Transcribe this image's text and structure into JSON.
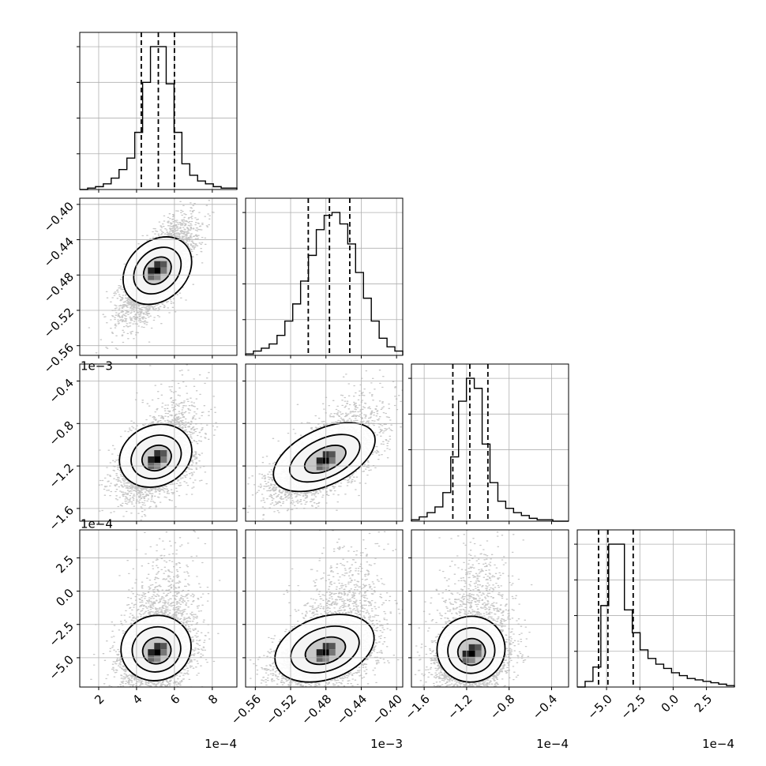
{
  "chart_data": {
    "type": "corner",
    "description_free": true,
    "params": [
      {
        "id": "p0",
        "ticks": [
          2,
          4,
          6,
          8
        ],
        "tick_labels": [
          "2",
          "4",
          "6",
          "8"
        ],
        "range": [
          1.0,
          9.3
        ],
        "offset": "1e−4",
        "quantiles": [
          4.25,
          5.15,
          6.0
        ],
        "hist": {
          "edges_start": 1.0,
          "edges_stop": 9.3,
          "counts": [
            0,
            1,
            2,
            4,
            8,
            14,
            22,
            40,
            75,
            100,
            100,
            74,
            40,
            18,
            10,
            6,
            4,
            2,
            1,
            1
          ]
        }
      },
      {
        "id": "p1",
        "ticks": [
          -0.56,
          -0.52,
          -0.48,
          -0.44,
          -0.4
        ],
        "tick_labels": [
          "−0.56",
          "−0.52",
          "−0.48",
          "−0.44",
          "−0.40"
        ],
        "range": [
          -0.571,
          -0.393
        ],
        "offset": "1e−3",
        "quantiles": [
          -0.5,
          -0.476,
          -0.453
        ],
        "hist": {
          "edges_start": -0.571,
          "edges_stop": -0.393,
          "counts": [
            1,
            3,
            5,
            8,
            14,
            24,
            36,
            52,
            70,
            88,
            98,
            100,
            92,
            78,
            58,
            40,
            24,
            12,
            6,
            3
          ]
        }
      },
      {
        "id": "p2",
        "ticks": [
          -1.6,
          -1.2,
          -0.8,
          -0.4
        ],
        "tick_labels": [
          "−1.6",
          "−1.2",
          "−0.8",
          "−0.4"
        ],
        "range": [
          -1.72,
          -0.24
        ],
        "offset": "1e−4",
        "quantiles": [
          -1.33,
          -1.17,
          -1.0
        ],
        "hist": {
          "edges_start": -1.72,
          "edges_stop": -0.24,
          "counts": [
            1,
            3,
            6,
            10,
            20,
            45,
            84,
            100,
            93,
            54,
            27,
            14,
            9,
            6,
            4,
            2,
            1,
            1,
            0,
            0
          ]
        }
      },
      {
        "id": "p3",
        "ticks": [
          -5.0,
          -2.5,
          0.0,
          2.5
        ],
        "tick_labels": [
          "−5.0",
          "−2.5",
          "0.0",
          "2.5"
        ],
        "range": [
          -7.2,
          4.6
        ],
        "offset": "1e−4",
        "quantiles": [
          -5.6,
          -4.9,
          -3.0
        ],
        "hist": {
          "edges_start": -7.2,
          "edges_stop": 4.6,
          "counts": [
            0,
            4,
            14,
            57,
            100,
            100,
            54,
            38,
            26,
            20,
            16,
            13,
            10,
            8,
            6,
            5,
            4,
            3,
            2,
            1
          ]
        }
      }
    ],
    "pairs": [
      {
        "row": 1,
        "col": 0,
        "center": [
          5.1,
          -0.475
        ],
        "sigma": [
          0.9,
          0.026
        ],
        "rho": 0.7,
        "skew": [
          0,
          0
        ]
      },
      {
        "row": 2,
        "col": 0,
        "center": [
          5.1,
          -1.14
        ],
        "sigma": [
          0.95,
          0.17
        ],
        "rho": 0.45,
        "skew": [
          0,
          0.4
        ]
      },
      {
        "row": 2,
        "col": 1,
        "center": [
          -0.48,
          -1.15
        ],
        "sigma": [
          0.028,
          0.17
        ],
        "rho": 0.65,
        "skew": [
          0,
          0.4
        ]
      },
      {
        "row": 3,
        "col": 0,
        "center": [
          5.1,
          -4.6
        ],
        "sigma": [
          0.95,
          1.4
        ],
        "rho": 0.3,
        "skew": [
          0,
          1.2
        ]
      },
      {
        "row": 3,
        "col": 1,
        "center": [
          -0.48,
          -4.6
        ],
        "sigma": [
          0.028,
          1.4
        ],
        "rho": 0.45,
        "skew": [
          0,
          1.2
        ]
      },
      {
        "row": 3,
        "col": 2,
        "center": [
          -1.15,
          -4.7
        ],
        "sigma": [
          0.17,
          1.4
        ],
        "rho": 0.2,
        "skew": [
          0,
          1.2
        ]
      }
    ],
    "grid": true,
    "points_per_panel": 4000
  }
}
